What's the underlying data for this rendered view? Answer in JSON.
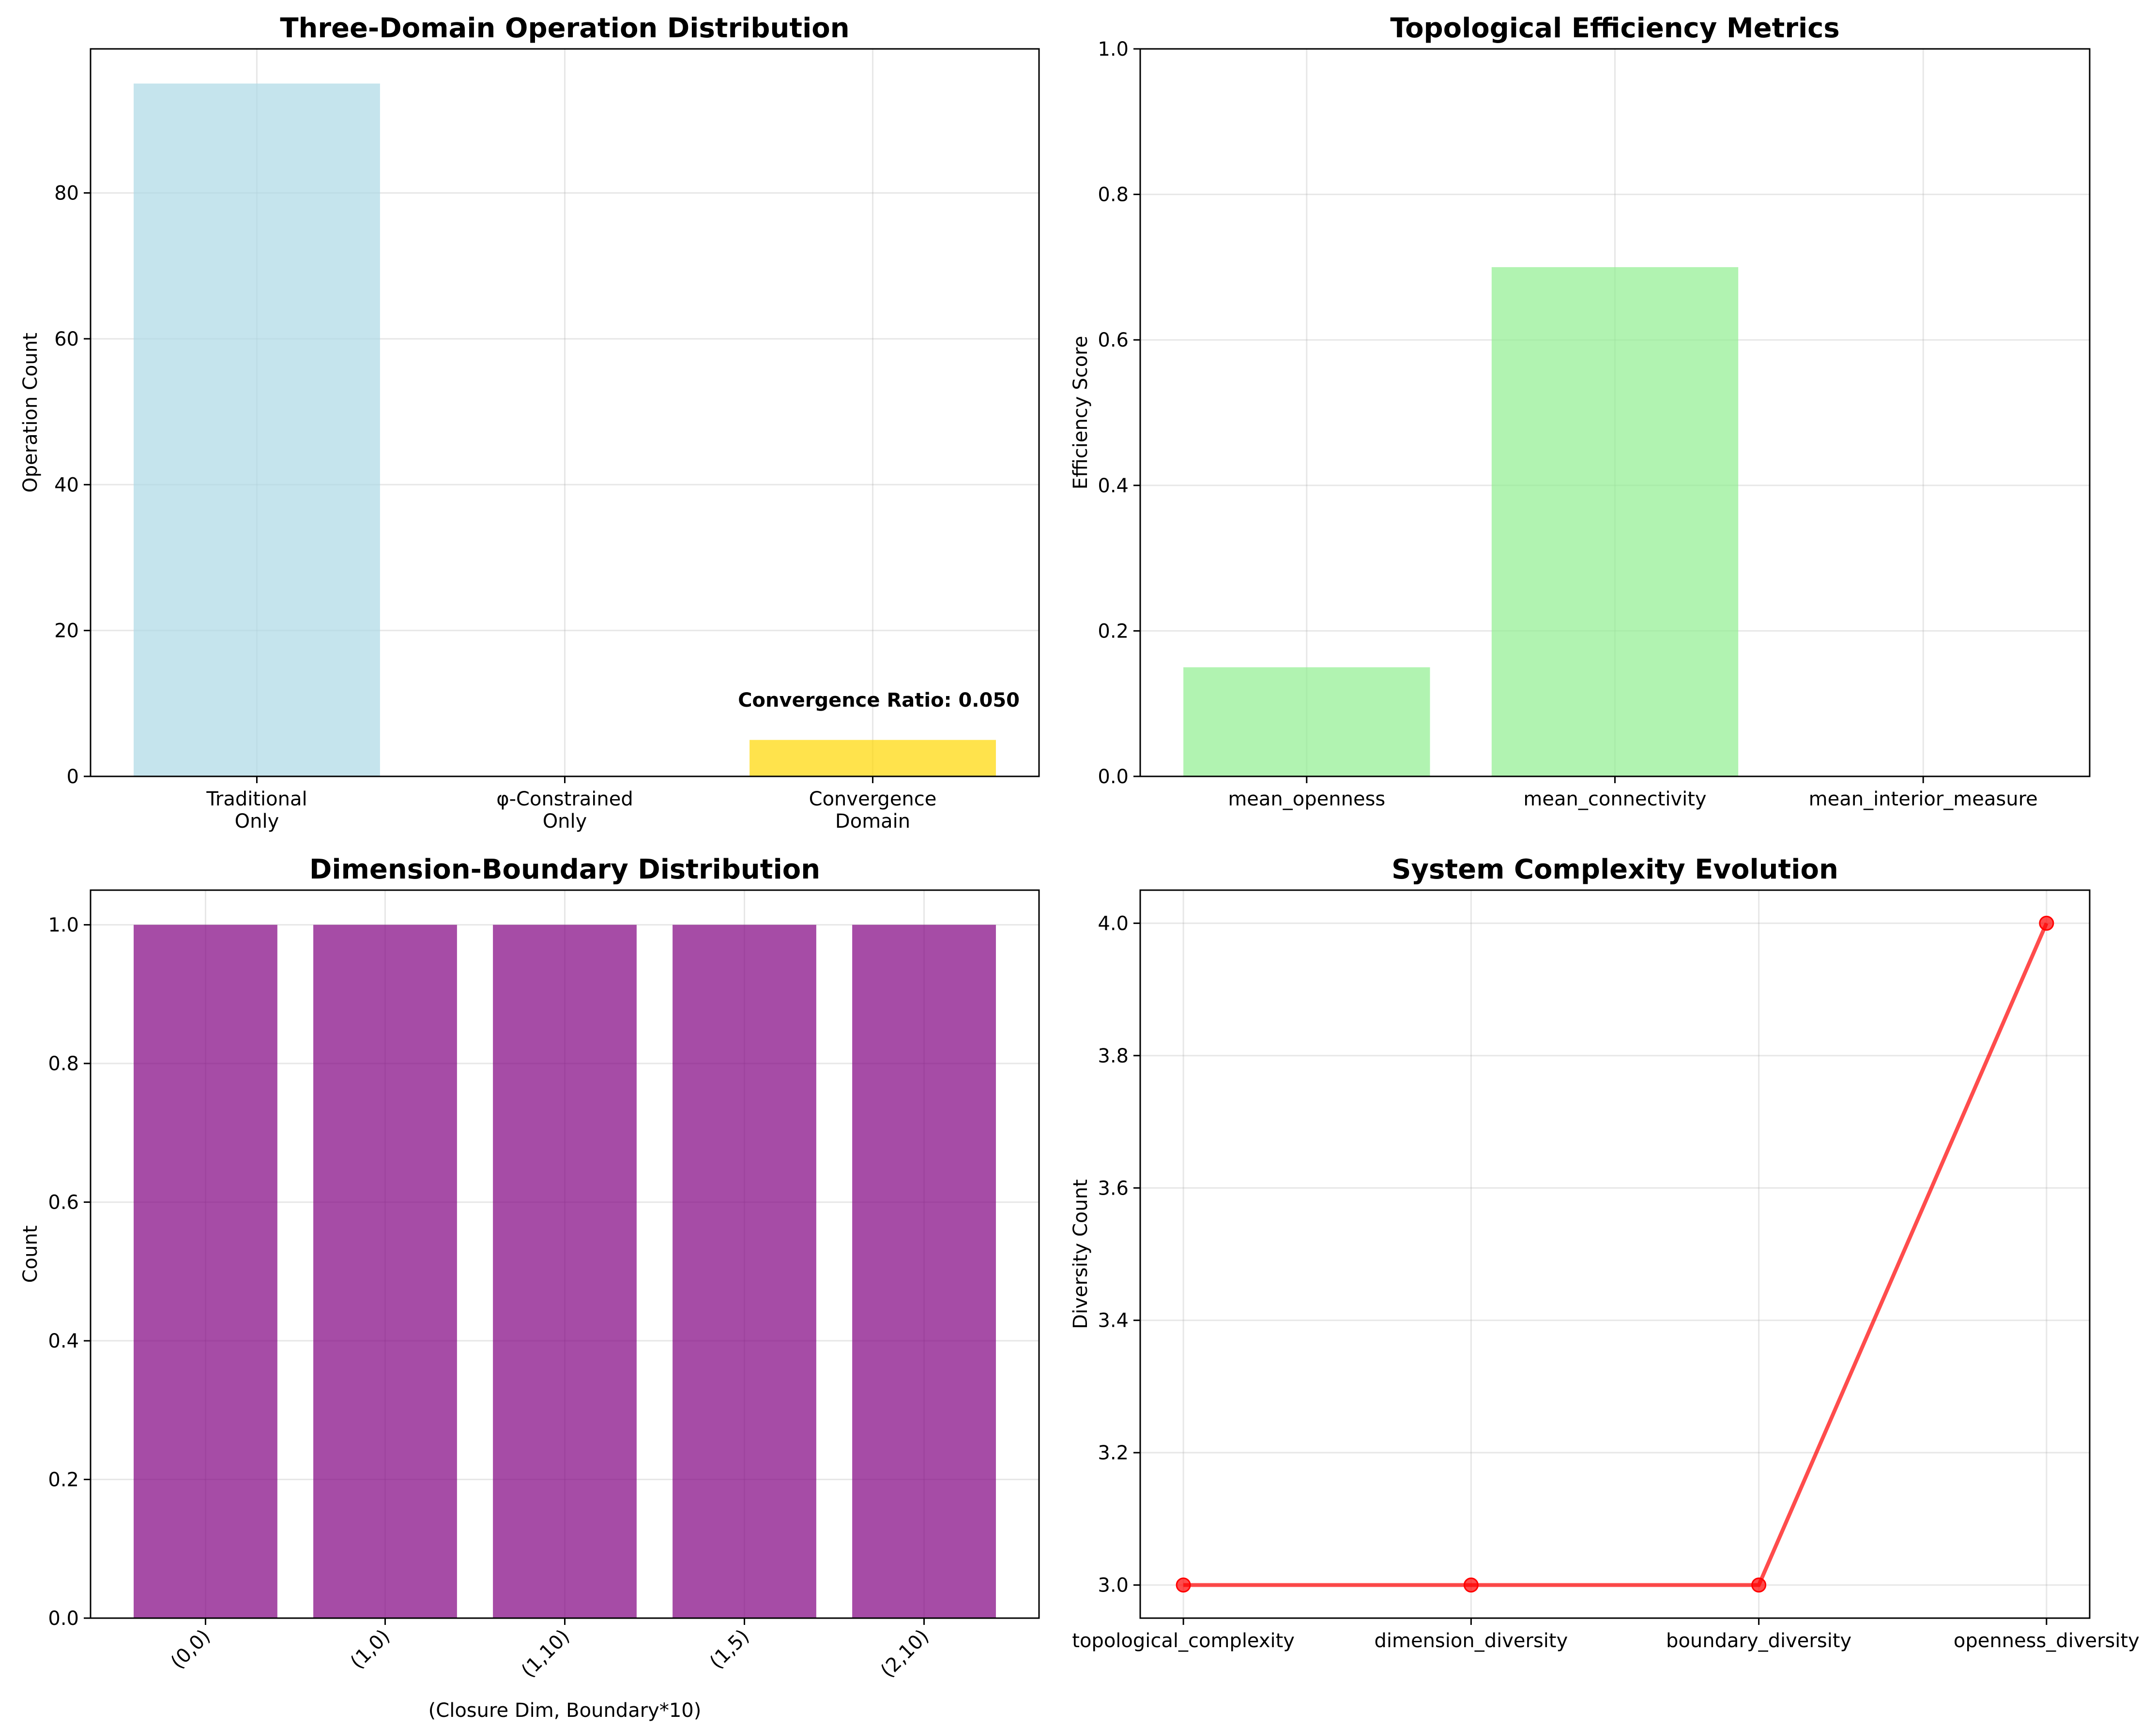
{
  "chart_data": [
    {
      "type": "bar",
      "title": "Three-Domain Operation Distribution",
      "categories": [
        "Traditional\nOnly",
        "φ-Constrained\nOnly",
        "Convergence\nDomain"
      ],
      "values": [
        95,
        0,
        5
      ],
      "colors": [
        "#add8e6",
        "#ffa500",
        "#ffd700"
      ],
      "xlabel": "",
      "ylabel": "Operation Count",
      "ylim": [
        0,
        99.75
      ],
      "yticks": [
        0,
        20,
        40,
        60,
        80
      ],
      "grid": true,
      "annotation": "Convergence Ratio: 0.050"
    },
    {
      "type": "bar",
      "title": "Topological Efficiency Metrics",
      "categories": [
        "mean_openness",
        "mean_connectivity",
        "mean_interior_measure"
      ],
      "values": [
        0.15,
        0.7,
        0.0
      ],
      "colors": [
        "#90ee90",
        "#90ee90",
        "#90ee90"
      ],
      "xlabel": "",
      "ylabel": "Efficiency Score",
      "ylim": [
        0,
        1
      ],
      "yticks": [
        0.0,
        0.2,
        0.4,
        0.6,
        0.8,
        1.0
      ],
      "grid": true
    },
    {
      "type": "bar",
      "title": "Dimension-Boundary Distribution",
      "categories": [
        "(0,0)",
        "(1,0)",
        "(1,10)",
        "(1,5)",
        "(2,10)"
      ],
      "values": [
        1,
        1,
        1,
        1,
        1
      ],
      "colors": [
        "#800080",
        "#800080",
        "#800080",
        "#800080",
        "#800080"
      ],
      "xlabel": "(Closure Dim, Boundary*10)",
      "ylabel": "Count",
      "ylim": [
        0,
        1.05
      ],
      "yticks": [
        0.0,
        0.2,
        0.4,
        0.6,
        0.8,
        1.0
      ],
      "grid": true,
      "xtick_rotation": 45
    },
    {
      "type": "line",
      "title": "System Complexity Evolution",
      "categories": [
        "topological_complexity",
        "dimension_diversity",
        "boundary_diversity",
        "openness_diversity"
      ],
      "values": [
        3,
        3,
        3,
        4
      ],
      "colors": [
        "#ff0000"
      ],
      "xlabel": "",
      "ylabel": "Diversity Count",
      "ylim": [
        2.95,
        4.05
      ],
      "yticks": [
        3.0,
        3.2,
        3.4,
        3.6,
        3.8,
        4.0
      ],
      "grid": true
    }
  ]
}
